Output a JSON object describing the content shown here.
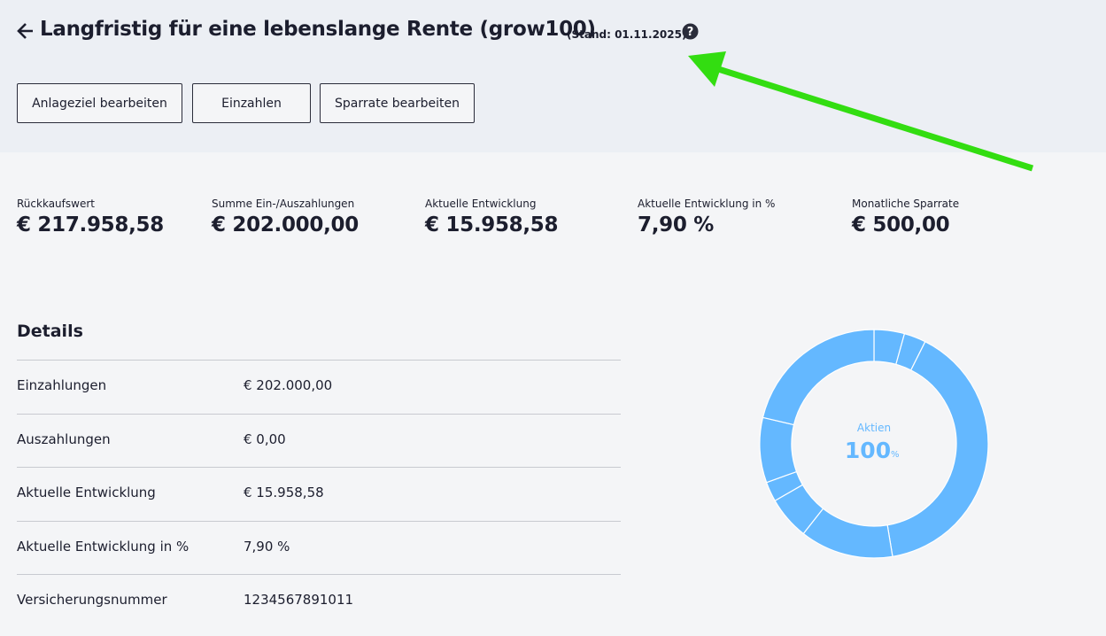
{
  "header": {
    "title": "Langfristig für eine lebenslange Rente (grow100)",
    "stand": "(Stand: 01.11.2025)"
  },
  "buttons": [
    "Anlageziel bearbeiten",
    "Einzahlen",
    "Sparrate bearbeiten"
  ],
  "kpis": [
    {
      "label": "Rückkaufswert",
      "value": "€ 217.958,58"
    },
    {
      "label": "Summe Ein-/Auszahlungen",
      "value": "€ 202.000,00"
    },
    {
      "label": "Aktuelle Entwicklung",
      "value": "€ 15.958,58"
    },
    {
      "label": "Aktuelle Entwicklung in %",
      "value": "7,90 %"
    },
    {
      "label": "Monatliche Sparrate",
      "value": "€ 500,00"
    }
  ],
  "details": {
    "title": "Details",
    "rows": [
      [
        "Einzahlungen",
        "€ 202.000,00"
      ],
      [
        "Auszahlungen",
        "€ 0,00"
      ],
      [
        "Aktuelle Entwicklung",
        "€ 15.958,58"
      ],
      [
        "Aktuelle Entwicklung in %",
        "7,90 %"
      ],
      [
        "Versicherungsnummer",
        "1234567891011"
      ]
    ]
  },
  "chart_data": {
    "type": "donut",
    "center_label": "Aktien",
    "center_value": 100,
    "center_unit": "%",
    "color": "#64b8ff",
    "values": [
      4.3,
      3.1,
      40,
      13.2,
      6.1,
      2.8,
      9.2,
      21.3
    ]
  }
}
